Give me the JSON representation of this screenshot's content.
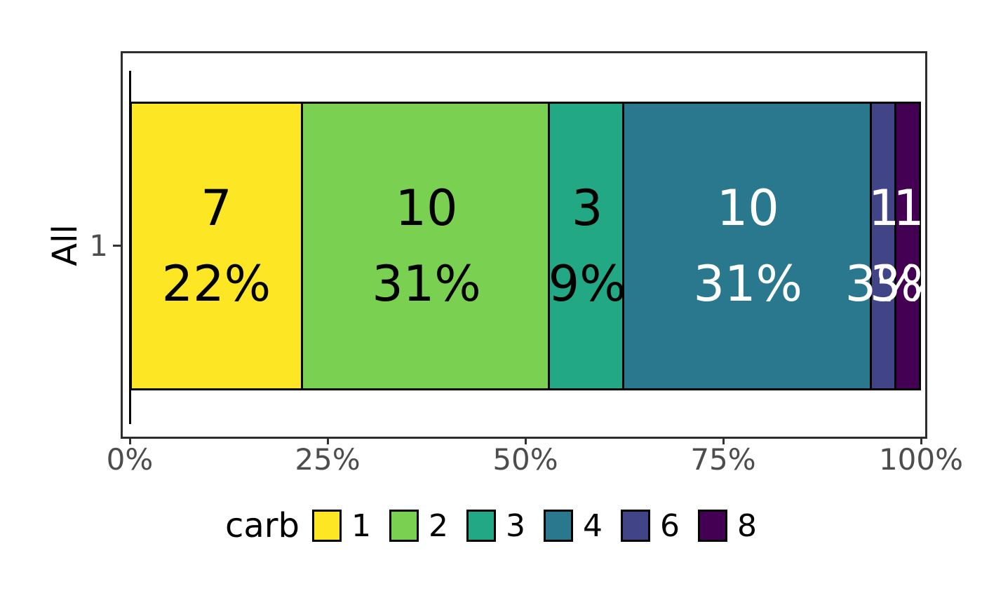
{
  "chart_data": {
    "type": "bar",
    "orientation": "horizontal",
    "stacked": true,
    "title": "",
    "ylabel": "All",
    "y_tick_label": "1",
    "xlim": [
      0,
      1
    ],
    "grid": false,
    "x_ticks": [
      {
        "label": "0%",
        "value": 0
      },
      {
        "label": "25%",
        "value": 0.25
      },
      {
        "label": "50%",
        "value": 0.5
      },
      {
        "label": "75%",
        "value": 0.75
      },
      {
        "label": "100%",
        "value": 1
      }
    ],
    "legend_title": "carb",
    "legend_position": "bottom",
    "series": [
      {
        "name": "1",
        "count": 7,
        "pct_label": "22%",
        "color": "#FDE725",
        "text_color": "#000000"
      },
      {
        "name": "2",
        "count": 10,
        "pct_label": "31%",
        "color": "#7AD151",
        "text_color": "#000000"
      },
      {
        "name": "3",
        "count": 3,
        "pct_label": "9%",
        "color": "#22A884",
        "text_color": "#000000"
      },
      {
        "name": "4",
        "count": 10,
        "pct_label": "31%",
        "color": "#2A788E",
        "text_color": "#FFFFFF"
      },
      {
        "name": "6",
        "count": 1,
        "pct_label": "3%",
        "color": "#414487",
        "text_color": "#FFFFFF"
      },
      {
        "name": "8",
        "count": 1,
        "pct_label": "3%",
        "color": "#440154",
        "text_color": "#FFFFFF"
      }
    ],
    "colors": {
      "panel_border": "#2e2e2e",
      "axis_line": "#000000",
      "tick": "#333333",
      "axis_text": "#4d4d4d",
      "segment_stroke": "#000000",
      "background": "#ffffff"
    }
  }
}
